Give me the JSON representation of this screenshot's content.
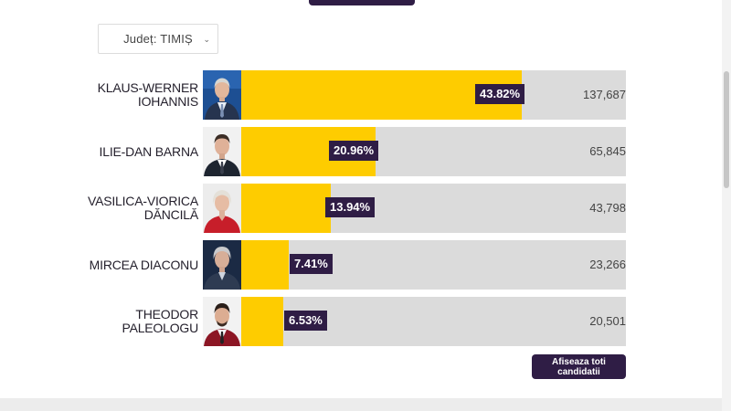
{
  "county_filter": {
    "label": "Județ: TIMIȘ"
  },
  "candidates": [
    {
      "name": "KLAUS-WERNER IOHANNIS",
      "percent_label": "43.82%",
      "percent": 43.82,
      "votes": "137,687"
    },
    {
      "name": "ILIE-DAN BARNA",
      "percent_label": "20.96%",
      "percent": 20.96,
      "votes": "65,845"
    },
    {
      "name": "VASILICA-VIORICA DĂNCILĂ",
      "percent_label": "13.94%",
      "percent": 13.94,
      "votes": "43,798"
    },
    {
      "name": "MIRCEA DIACONU",
      "percent_label": "7.41%",
      "percent": 7.41,
      "votes": "23,266"
    },
    {
      "name": "THEODOR PALEOLOGU",
      "percent_label": "6.53%",
      "percent": 6.53,
      "votes": "20,501"
    }
  ],
  "show_all_button": {
    "label": "Afiseaza toti candidatii"
  },
  "colors": {
    "bar_fill": "#fecc00",
    "bar_track": "#dbdbdb",
    "label_bg": "#2f1d45"
  },
  "icons": {
    "dropdown": "chevron-down-icon"
  }
}
